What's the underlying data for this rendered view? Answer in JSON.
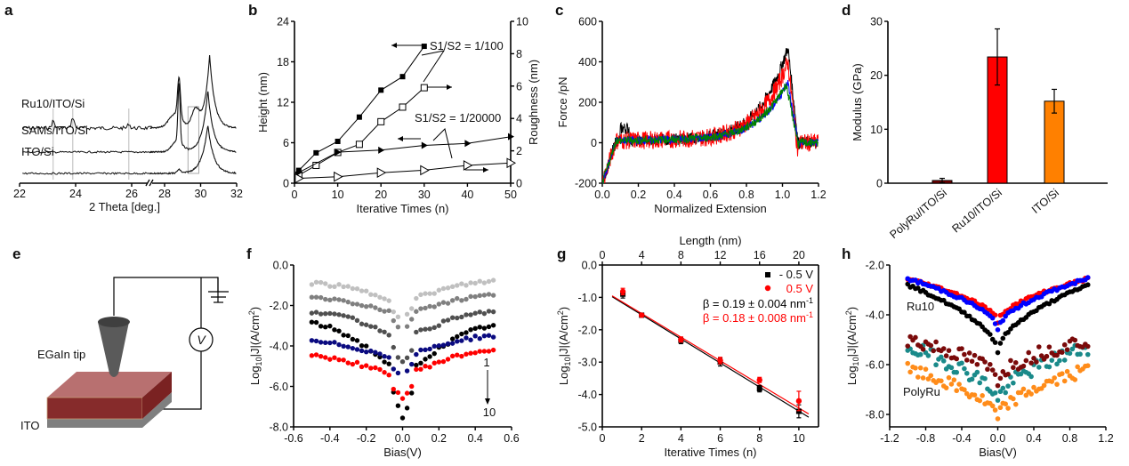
{
  "panels": {
    "a": {
      "label": "a"
    },
    "b": {
      "label": "b"
    },
    "c": {
      "label": "c"
    },
    "d": {
      "label": "d"
    },
    "e": {
      "label": "e"
    },
    "f": {
      "label": "f"
    },
    "g": {
      "label": "g"
    },
    "h": {
      "label": "h"
    }
  },
  "diagram_e": {
    "tip_label": "EGaIn tip",
    "substrate_label": "ITO",
    "meter_label": "V",
    "colors": {
      "film": "#8b2e2e",
      "tip": "#555555",
      "ito": "#808080"
    }
  },
  "chart_data": [
    {
      "id": "a",
      "type": "line",
      "title": "",
      "xlabel": "2 Theta [deg.]",
      "ylabel": "",
      "xlim": [
        22,
        32
      ],
      "axis_break": [
        26.8,
        27.2
      ],
      "xticks": [
        "22",
        "24",
        "26",
        "28",
        "30",
        "32"
      ],
      "series": [
        {
          "name": "Ru10/ITO/Si",
          "peaks": [
            23.2,
            23.9,
            25.9,
            28.8,
            29.7,
            30.5
          ]
        },
        {
          "name": "SAMs/ITO/Si",
          "peaks": [
            28.8,
            30.4
          ]
        },
        {
          "name": "ITO/Si",
          "peaks": [
            28.8,
            30.4
          ]
        }
      ],
      "reference_lines": [
        23.2,
        23.9,
        25.9
      ],
      "highlight_box": [
        29.3,
        29.9
      ]
    },
    {
      "id": "b",
      "type": "line",
      "xlabel": "Iterative Times (n)",
      "ylabel": "Height (nm)",
      "ylabel_right": "Roughness (nm)",
      "xlim": [
        0,
        50
      ],
      "ylim": [
        0,
        24
      ],
      "ylim_right": [
        0,
        10
      ],
      "xticks": [
        "0",
        "10",
        "20",
        "30",
        "40",
        "50"
      ],
      "yticks": [
        "0",
        "6",
        "12",
        "18",
        "24"
      ],
      "yticks_right": [
        "0",
        "2",
        "4",
        "6",
        "8",
        "10"
      ],
      "annotations": [
        "S1/S2 = 1/100",
        "S1/S2 = 1/20000"
      ],
      "series": [
        {
          "name": "Height S1/S2=1/100",
          "axis": "left",
          "marker": "filled-square",
          "x": [
            1,
            5,
            10,
            15,
            20,
            25,
            30
          ],
          "y": [
            1.9,
            4.5,
            6.2,
            9.8,
            13.8,
            15.8,
            20.3
          ]
        },
        {
          "name": "Roughness S1/S2=1/100",
          "axis": "right",
          "marker": "open-square",
          "x": [
            1,
            5,
            10,
            15,
            20,
            25,
            30
          ],
          "y": [
            0.5,
            1.1,
            1.9,
            2.4,
            3.8,
            4.7,
            5.9
          ]
        },
        {
          "name": "Height S1/S2=1/20000",
          "axis": "left",
          "marker": "filled-triangle",
          "x": [
            1,
            10,
            20,
            30,
            40,
            50
          ],
          "y": [
            1.6,
            4.6,
            4.9,
            5.6,
            5.9,
            6.9
          ]
        },
        {
          "name": "Roughness S1/S2=1/20000",
          "axis": "right",
          "marker": "open-triangle",
          "x": [
            1,
            10,
            20,
            30,
            40,
            50
          ],
          "y": [
            0.3,
            0.4,
            0.65,
            0.8,
            1.1,
            1.25
          ]
        }
      ]
    },
    {
      "id": "c",
      "type": "line",
      "xlabel": "Normalized Extension",
      "ylabel": "Force /pN",
      "xlim": [
        0,
        1.2
      ],
      "ylim": [
        -200,
        600
      ],
      "xticks": [
        "0.0",
        "0.2",
        "0.4",
        "0.6",
        "0.8",
        "1.0",
        "1.2"
      ],
      "yticks": [
        "-200",
        "0",
        "200",
        "400",
        "600"
      ],
      "series": [
        {
          "name": "black",
          "color": "#000000",
          "peak": 470,
          "peak_x": 1.03
        },
        {
          "name": "red",
          "color": "#ff0000",
          "peak": 400,
          "peak_x": 1.03
        },
        {
          "name": "blue",
          "color": "#0000ff",
          "peak": 300,
          "peak_x": 1.03
        },
        {
          "name": "green",
          "color": "#008000",
          "peak": 290,
          "peak_x": 1.02
        }
      ]
    },
    {
      "id": "d",
      "type": "bar",
      "xlabel": "",
      "ylabel": "Modulus (GPa)",
      "ylim": [
        0,
        30
      ],
      "yticks": [
        "0",
        "10",
        "20",
        "30"
      ],
      "categories": [
        "PolyRu/ITO/Si",
        "Ru10/ITO/Si",
        "ITO/Si"
      ],
      "values": [
        0.5,
        23.4,
        15.2
      ],
      "errors": [
        0.4,
        5.2,
        2.2
      ],
      "colors": [
        "#7a0000",
        "#ff0000",
        "#ff8000"
      ]
    },
    {
      "id": "f",
      "type": "scatter",
      "xlabel": "Bias(V)",
      "ylabel": "Log10|J|(A/cm2)",
      "xlim": [
        -0.6,
        0.6
      ],
      "ylim": [
        -8.0,
        0.0
      ],
      "xticks": [
        "-0.6",
        "-0.4",
        "-0.2",
        "0.0",
        "0.2",
        "0.4",
        "0.6"
      ],
      "yticks": [
        "-8.0",
        "-6.0",
        "-4.0",
        "-2.0",
        "0.0"
      ],
      "annotation_top": "1",
      "annotation_bottom": "10",
      "series": [
        {
          "name": "1",
          "color": "#c0c0c0",
          "edge": -0.9,
          "edge_right": -0.8,
          "min": -2.7
        },
        {
          "name": "2",
          "color": "#808080",
          "edge": -1.6,
          "edge_right": -1.5,
          "min": -3.2
        },
        {
          "name": "3",
          "color": "#505050",
          "edge": -2.3,
          "edge_right": -2.3,
          "min": -4.8
        },
        {
          "name": "4",
          "color": "#000000",
          "edge": -2.9,
          "edge_right": -3.0,
          "min": -7.6
        },
        {
          "name": "5",
          "color": "#0a0a80",
          "edge": -3.8,
          "edge_right": -3.5,
          "min": -5.5
        },
        {
          "name": "6",
          "color": "#ff0000",
          "edge": -4.5,
          "edge_right": -4.2,
          "min": -6.6
        }
      ]
    },
    {
      "id": "g",
      "type": "scatter",
      "xlabel": "Iterative Times (n)",
      "xlabel_top": "Length (nm)",
      "ylabel": "Log10|J|(A/cm2)",
      "xlim": [
        0,
        11
      ],
      "ylim": [
        -5.0,
        0.0
      ],
      "xticks": [
        "0",
        "2",
        "4",
        "6",
        "8",
        "10"
      ],
      "xticks_top": [
        "0",
        "4",
        "8",
        "12",
        "16",
        "20"
      ],
      "yticks": [
        "-5.0",
        "-4.0",
        "-3.0",
        "-2.0",
        "-1.0",
        "0.0"
      ],
      "legend": [
        {
          "label": "- 0.5 V",
          "color": "#000000",
          "marker": "square"
        },
        {
          "label": "0.5 V",
          "color": "#ff0000",
          "marker": "circle"
        }
      ],
      "fit_labels": [
        {
          "text": "β = 0.19 ± 0.004 nm",
          "sup": "-1",
          "color": "#000000"
        },
        {
          "text": "β = 0.18 ± 0.008 nm",
          "sup": "-1",
          "color": "#ff0000"
        }
      ],
      "legend_position": "top-right",
      "series": [
        {
          "name": "- 0.5 V",
          "color": "#000000",
          "x": [
            1,
            2,
            4,
            6,
            8,
            10
          ],
          "y": [
            -0.9,
            -1.55,
            -2.33,
            -3.0,
            -3.82,
            -4.52
          ],
          "err": [
            0.12,
            0.05,
            0.1,
            0.12,
            0.1,
            0.2
          ],
          "fit": [
            [
              0.5,
              -0.98
            ],
            [
              10.5,
              -4.7
            ]
          ]
        },
        {
          "name": "0.5 V",
          "color": "#ff0000",
          "x": [
            1,
            2,
            4,
            6,
            8,
            10
          ],
          "y": [
            -0.82,
            -1.55,
            -2.3,
            -2.95,
            -3.55,
            -4.2
          ],
          "err": [
            0.1,
            0.05,
            0.08,
            0.1,
            0.08,
            0.3
          ],
          "fit": [
            [
              0.5,
              -0.95
            ],
            [
              10.5,
              -4.6
            ]
          ]
        }
      ]
    },
    {
      "id": "h",
      "type": "scatter",
      "xlabel": "Bias(V)",
      "ylabel": "Log10|J|(A/cm2)",
      "xlim": [
        -1.2,
        1.2
      ],
      "ylim": [
        -8.5,
        -2.0
      ],
      "xticks": [
        "-1.2",
        "-0.8",
        "-0.4",
        "0.0",
        "0.4",
        "0.8",
        "1.2"
      ],
      "yticks": [
        "-8.0",
        "-6.0",
        "-4.0",
        "-2.0"
      ],
      "annotations": [
        "Ru10",
        "PolyRu"
      ],
      "series": [
        {
          "name": "Ru10 red",
          "group": "Ru10",
          "color": "#ff0000",
          "edge": -2.55,
          "min": -4.3,
          "noise": 0.05
        },
        {
          "name": "Ru10 blue",
          "group": "Ru10",
          "color": "#0000ff",
          "edge": -2.55,
          "min": -4.6,
          "noise": 0.06
        },
        {
          "name": "Ru10 black",
          "group": "Ru10",
          "color": "#000000",
          "edge": -2.8,
          "min": -5.5,
          "noise": 0.05
        },
        {
          "name": "PolyRu maroon",
          "group": "PolyRu",
          "color": "#7a0a0a",
          "edge": -5.0,
          "min": -6.6,
          "noise": 0.3
        },
        {
          "name": "PolyRu teal",
          "group": "PolyRu",
          "color": "#1a8a8a",
          "edge": -5.3,
          "min": -7.5,
          "noise": 0.3
        },
        {
          "name": "PolyRu orange",
          "group": "PolyRu",
          "color": "#ff8c1a",
          "edge": -6.2,
          "min": -8.2,
          "noise": 0.25
        }
      ]
    }
  ]
}
